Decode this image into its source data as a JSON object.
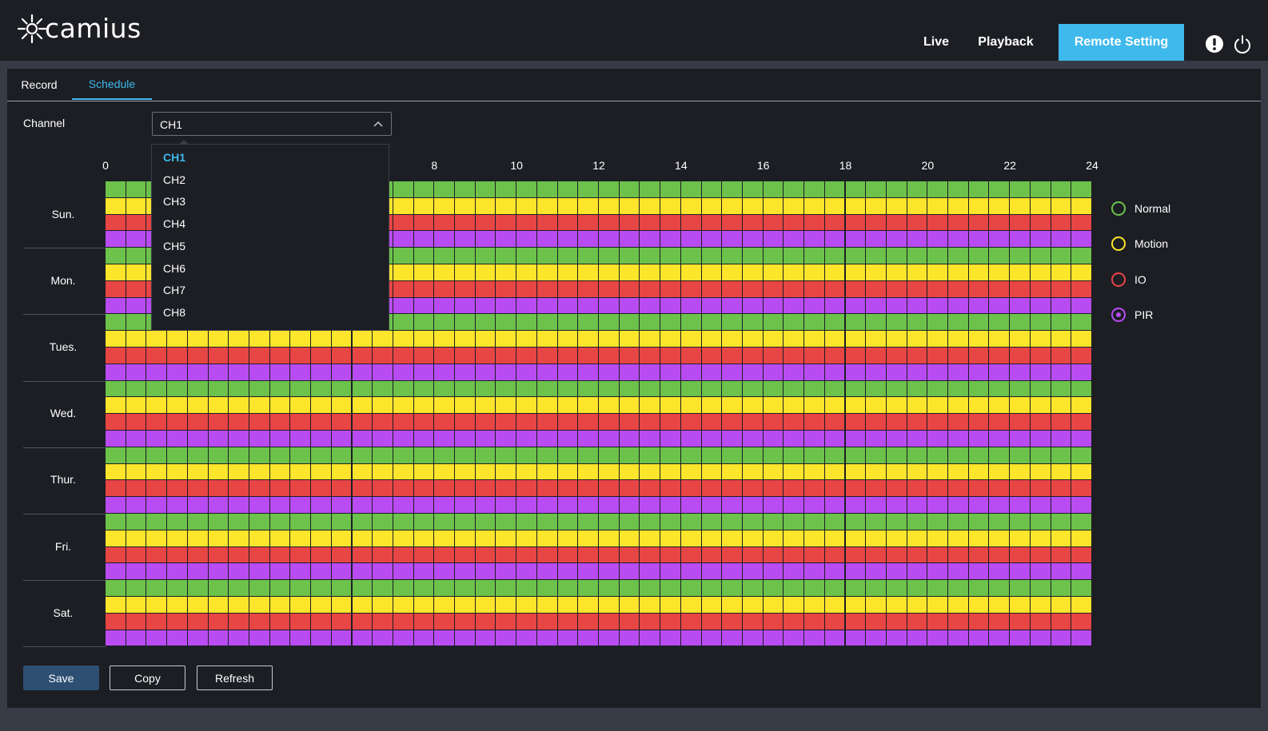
{
  "header": {
    "brand": "camius",
    "nav": {
      "live": "Live",
      "playback": "Playback",
      "remote_setting": "Remote Setting"
    },
    "icons": [
      "info-icon",
      "power-icon"
    ]
  },
  "tabs": {
    "record": "Record",
    "schedule": "Schedule"
  },
  "channel": {
    "label": "Channel",
    "selected": "CH1",
    "options": [
      "CH1",
      "CH2",
      "CH3",
      "CH4",
      "CH5",
      "CH6",
      "CH7",
      "CH8"
    ]
  },
  "schedule": {
    "hour_ticks": [
      "0",
      "8",
      "10",
      "12",
      "14",
      "16",
      "18",
      "20",
      "22",
      "24"
    ],
    "days": [
      "Sun.",
      "Mon.",
      "Tues.",
      "Wed.",
      "Thur.",
      "Fri.",
      "Sat."
    ],
    "slots_per_day": 48,
    "row_types": [
      "normal",
      "motion",
      "io",
      "pir"
    ],
    "all_slots_enabled": true
  },
  "legend": [
    {
      "key": "normal",
      "label": "Normal",
      "color": "#6cc24a"
    },
    {
      "key": "motion",
      "label": "Motion",
      "color": "#fde52b"
    },
    {
      "key": "io",
      "label": "IO",
      "color": "#e84545"
    },
    {
      "key": "pir",
      "label": "PIR",
      "color": "#b84cf2",
      "selected": true
    }
  ],
  "buttons": {
    "save": "Save",
    "copy": "Copy",
    "refresh": "Refresh"
  },
  "colors": {
    "accent": "#3fb9ec",
    "save_bg": "#2d4f72"
  }
}
